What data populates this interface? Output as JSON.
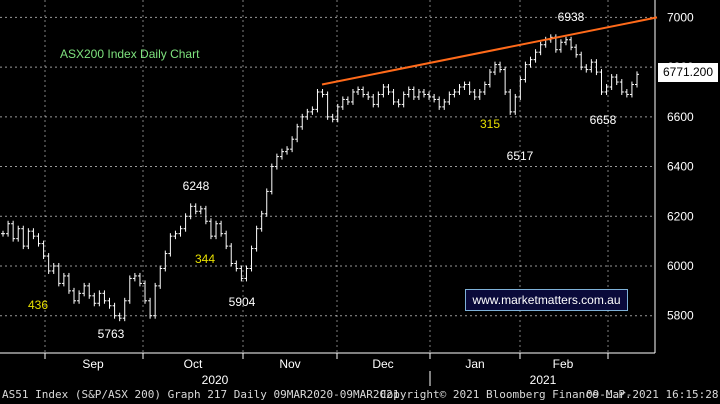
{
  "chart_data": {
    "type": "line",
    "title": "ASX200 Index Daily Chart",
    "series_name": "AS51 Index (S&P/ASX 200)",
    "y_ticks": [
      5800,
      6000,
      6200,
      6400,
      6600,
      6800,
      7000
    ],
    "ylim": [
      5650,
      7070
    ],
    "x_months": [
      "Sep",
      "Oct",
      "Nov",
      "Dec",
      "Jan",
      "Feb"
    ],
    "x_years": [
      "2020",
      "2021"
    ],
    "last_value": "6771.200",
    "annotations": [
      "436",
      "5763",
      "6248",
      "344",
      "5904",
      "315",
      "6517",
      "6938",
      "6658"
    ],
    "trendline": [
      [
        6730,
        7000
      ]
    ],
    "points": [
      6130,
      6170,
      6110,
      6150,
      6080,
      6140,
      6120,
      6090,
      6040,
      5980,
      6000,
      5930,
      5960,
      5900,
      5860,
      5890,
      5920,
      5880,
      5850,
      5890,
      5860,
      5840,
      5800,
      5790,
      5860,
      5950,
      5960,
      5930,
      5860,
      5800,
      5920,
      5990,
      6050,
      6120,
      6130,
      6150,
      6200,
      6240,
      6220,
      6230,
      6180,
      6120,
      6170,
      6130,
      6080,
      6010,
      5990,
      5950,
      5990,
      6070,
      6150,
      6210,
      6300,
      6400,
      6440,
      6460,
      6470,
      6510,
      6560,
      6600,
      6620,
      6630,
      6700,
      6690,
      6600,
      6590,
      6640,
      6670,
      6660,
      6700,
      6710,
      6690,
      6680,
      6650,
      6690,
      6720,
      6700,
      6660,
      6650,
      6690,
      6710,
      6680,
      6700,
      6690,
      6680,
      6670,
      6640,
      6660,
      6690,
      6700,
      6720,
      6730,
      6700,
      6680,
      6700,
      6730,
      6780,
      6810,
      6790,
      6700,
      6620,
      6680,
      6750,
      6810,
      6830,
      6860,
      6890,
      6910,
      6920,
      6870,
      6900,
      6910,
      6880,
      6850,
      6800,
      6790,
      6820,
      6780,
      6700,
      6720,
      6760,
      6740,
      6700,
      6690,
      6730,
      6771
    ],
    "values_note": ""
  },
  "watermark": "www.marketmatters.com.au",
  "footer": {
    "left": "AS51 Index (S&P/ASX 200) Graph 217  Daily 09MAR2020-09MAR2021",
    "center": "Copyright© 2021 Bloomberg Finance L.P.",
    "right": "09-Mar-2021 16:15:28"
  }
}
